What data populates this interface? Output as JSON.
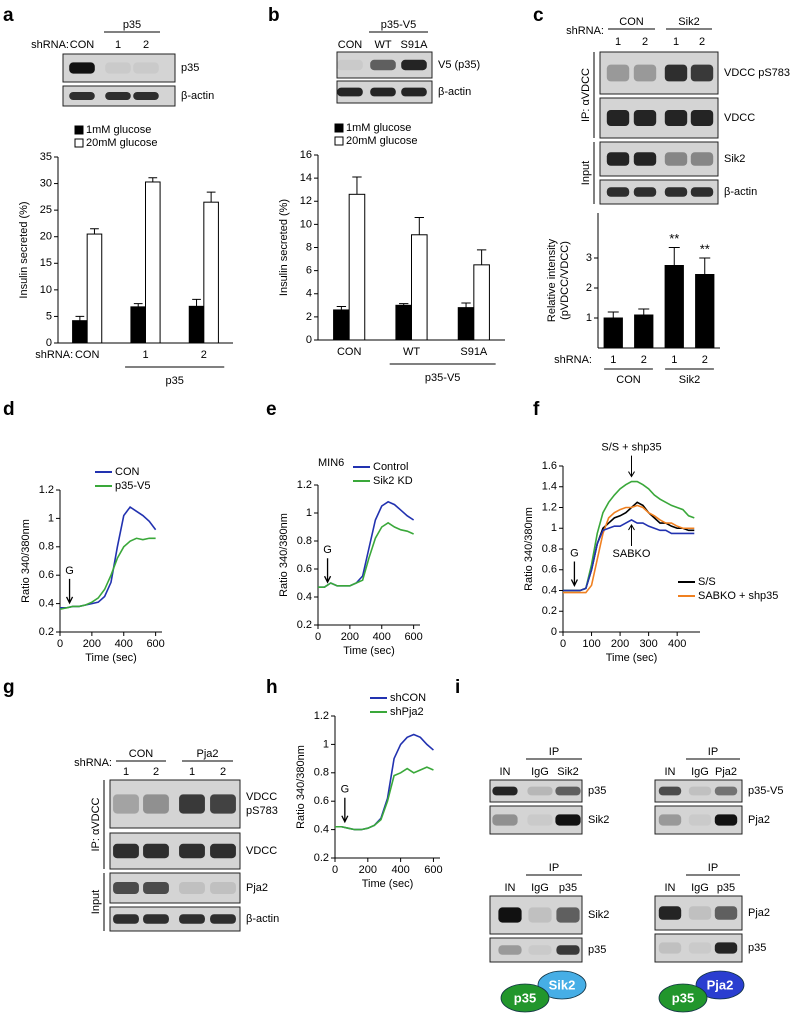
{
  "panel_labels": [
    "a",
    "b",
    "c",
    "d",
    "e",
    "f",
    "g",
    "h",
    "i"
  ],
  "blots": {
    "a": {
      "prefix": "shRNA:",
      "header": "p35",
      "lanes": [
        "CON",
        "1",
        "2"
      ],
      "rows": [
        "p35",
        "β-actin"
      ]
    },
    "b": {
      "header": "p35-V5",
      "lanes": [
        "CON",
        "WT",
        "S91A"
      ],
      "rows": [
        "V5 (p35)",
        "β-actin"
      ]
    },
    "c": {
      "prefix": "shRNA:",
      "groups": [
        "CON",
        "Sik2"
      ],
      "lanes": [
        "1",
        "2",
        "1",
        "2"
      ],
      "rows": [
        "VDCC pS783",
        "VDCC",
        "Sik2",
        "β-actin"
      ],
      "sections": [
        "IP: αVDCC",
        "Input"
      ]
    },
    "g": {
      "prefix": "shRNA:",
      "groups": [
        "CON",
        "Pja2"
      ],
      "lanes": [
        "1",
        "2",
        "1",
        "2"
      ],
      "rows": [
        [
          "VDCC",
          "pS783"
        ],
        "VDCC",
        "Pja2",
        "β-actin"
      ],
      "sections": [
        "IP: αVDCC",
        "Input"
      ]
    },
    "i": [
      {
        "header": "IP",
        "lanes": [
          "IN",
          "IgG",
          "Sik2"
        ],
        "rows": [
          "p35",
          "Sik2"
        ]
      },
      {
        "header": "IP",
        "lanes": [
          "IN",
          "IgG",
          "Pja2"
        ],
        "rows": [
          "p35-V5",
          "Pja2"
        ]
      },
      {
        "header": "IP",
        "lanes": [
          "IN",
          "IgG",
          "p35"
        ],
        "rows": [
          "Sik2",
          "p35"
        ]
      },
      {
        "header": "IP",
        "lanes": [
          "IN",
          "IgG",
          "p35"
        ],
        "rows": [
          "Pja2",
          "p35"
        ]
      }
    ],
    "complexes": [
      [
        "Sik2",
        "p35"
      ],
      [
        "Pja2",
        "p35"
      ]
    ]
  },
  "chart_data": [
    {
      "type": "bar",
      "ylabel": "Insulin secreted (%)",
      "categories": [
        "CON",
        "1",
        "2"
      ],
      "x_prefix": "shRNA:",
      "group_label": "p35",
      "ylim": [
        0,
        35
      ],
      "yticks": [
        0,
        5,
        10,
        15,
        20,
        25,
        30,
        35
      ],
      "legend": "top",
      "series": [
        {
          "name": "1mM glucose",
          "color": "#000000",
          "values": [
            4.2,
            6.8,
            6.9
          ],
          "errors": [
            0.8,
            0.6,
            1.3
          ]
        },
        {
          "name": "20mM glucose",
          "color": "#ffffff",
          "values": [
            20.5,
            30.3,
            26.5
          ],
          "errors": [
            1.0,
            0.8,
            1.9
          ]
        }
      ]
    },
    {
      "type": "bar",
      "ylabel": "Insulin secreted (%)",
      "categories": [
        "CON",
        "WT",
        "S91A"
      ],
      "group_label": "p35-V5",
      "ylim": [
        0,
        16
      ],
      "yticks": [
        0,
        2,
        4,
        6,
        8,
        10,
        12,
        14,
        16
      ],
      "legend": "top",
      "series": [
        {
          "name": "1mM glucose",
          "color": "#000000",
          "values": [
            2.6,
            3.0,
            2.8
          ],
          "errors": [
            0.3,
            0.15,
            0.4
          ]
        },
        {
          "name": "20mM glucose",
          "color": "#ffffff",
          "values": [
            12.6,
            9.1,
            6.5
          ],
          "errors": [
            1.5,
            1.5,
            1.3
          ]
        }
      ]
    },
    {
      "type": "bar",
      "ylabel": [
        "Relative intensity",
        "(pVDCC/VDCC)"
      ],
      "categories": [
        "1",
        "2",
        "1",
        "2"
      ],
      "x_prefix": "shRNA:",
      "groups": [
        "CON",
        "Sik2"
      ],
      "ylim": [
        0,
        4.5
      ],
      "yticks": [
        1,
        2,
        3
      ],
      "color": "#000000",
      "values": [
        1.0,
        1.1,
        2.75,
        2.45
      ],
      "errors": [
        0.2,
        0.2,
        0.6,
        0.55
      ],
      "significance": [
        null,
        null,
        "**",
        "**"
      ]
    },
    {
      "type": "line",
      "xlabel": "Time (sec)",
      "ylabel": "Ratio 340/380nm",
      "legend": "top",
      "x": [
        0,
        40,
        80,
        120,
        160,
        200,
        240,
        280,
        320,
        360,
        400,
        440,
        480,
        520,
        560,
        600
      ],
      "xlim": [
        0,
        640
      ],
      "xticks": [
        0,
        200,
        400,
        600
      ],
      "ylim": [
        0.2,
        1.2
      ],
      "yticks": [
        0.2,
        0.4,
        0.6,
        0.8,
        1,
        1.2
      ],
      "arrow": {
        "label": "G",
        "x": 60
      },
      "series": [
        {
          "name": "CON",
          "color": "#2232b0",
          "values": [
            0.37,
            0.37,
            0.38,
            0.38,
            0.39,
            0.4,
            0.41,
            0.45,
            0.55,
            0.8,
            1.02,
            1.08,
            1.05,
            1.02,
            0.98,
            0.92
          ]
        },
        {
          "name": "p35-V5",
          "color": "#3aa83a",
          "values": [
            0.36,
            0.37,
            0.38,
            0.38,
            0.39,
            0.41,
            0.44,
            0.5,
            0.6,
            0.72,
            0.8,
            0.84,
            0.86,
            0.85,
            0.86,
            0.86
          ]
        }
      ]
    },
    {
      "type": "line",
      "xlabel": "Time (sec)",
      "ylabel": "Ratio 340/380nm",
      "note": "MIN6",
      "legend": "top",
      "x": [
        0,
        40,
        80,
        120,
        160,
        200,
        240,
        280,
        320,
        360,
        400,
        440,
        480,
        520,
        560,
        600
      ],
      "xlim": [
        0,
        640
      ],
      "xticks": [
        0,
        200,
        400,
        600
      ],
      "ylim": [
        0.2,
        1.2
      ],
      "yticks": [
        0.2,
        0.4,
        0.6,
        0.8,
        1,
        1.2
      ],
      "arrow": {
        "label": "G",
        "x": 60
      },
      "series": [
        {
          "name": "Control",
          "color": "#2232b0",
          "values": [
            0.47,
            0.47,
            0.5,
            0.48,
            0.48,
            0.48,
            0.5,
            0.55,
            0.75,
            0.95,
            1.05,
            1.08,
            1.06,
            1.02,
            0.98,
            0.95
          ]
        },
        {
          "name": "Sik2 KD",
          "color": "#3aa83a",
          "values": [
            0.47,
            0.47,
            0.5,
            0.48,
            0.48,
            0.48,
            0.5,
            0.52,
            0.68,
            0.82,
            0.9,
            0.93,
            0.9,
            0.88,
            0.87,
            0.85
          ]
        }
      ]
    },
    {
      "type": "line",
      "xlabel": "Time (sec)",
      "ylabel": "Ratio 340/380nm",
      "legend": "right",
      "x": [
        0,
        20,
        40,
        60,
        80,
        100,
        120,
        140,
        160,
        180,
        200,
        220,
        240,
        260,
        280,
        300,
        320,
        340,
        360,
        380,
        400,
        420,
        440,
        460
      ],
      "xlim": [
        0,
        480
      ],
      "xticks": [
        0,
        100,
        200,
        300,
        400
      ],
      "ylim": [
        0,
        1.6
      ],
      "yticks": [
        0,
        0.2,
        0.4,
        0.6,
        0.8,
        1,
        1.2,
        1.4,
        1.6
      ],
      "arrow": {
        "label": "G",
        "x": 40
      },
      "series": [
        {
          "name": "S/S",
          "color": "#000000",
          "label_position": "legend",
          "values": [
            0.4,
            0.4,
            0.4,
            0.4,
            0.42,
            0.6,
            0.85,
            1.0,
            1.05,
            1.1,
            1.12,
            1.15,
            1.2,
            1.25,
            1.22,
            1.15,
            1.1,
            1.05,
            1.05,
            1.02,
            1.0,
            1.0,
            0.98,
            0.98
          ]
        },
        {
          "name": "SABKO + shp35",
          "color": "#f08020",
          "label_position": "legend",
          "values": [
            0.38,
            0.38,
            0.38,
            0.38,
            0.38,
            0.45,
            0.7,
            0.95,
            1.1,
            1.15,
            1.18,
            1.2,
            1.2,
            1.22,
            1.2,
            1.15,
            1.12,
            1.08,
            1.05,
            1.05,
            1.02,
            1.0,
            1.0,
            1.0
          ]
        },
        {
          "name": "S/S + shp35",
          "color": "#3aa83a",
          "label_position": "above",
          "values": [
            0.4,
            0.4,
            0.4,
            0.4,
            0.42,
            0.65,
            0.95,
            1.15,
            1.25,
            1.32,
            1.38,
            1.42,
            1.45,
            1.45,
            1.42,
            1.38,
            1.32,
            1.28,
            1.25,
            1.22,
            1.2,
            1.18,
            1.12,
            1.1
          ]
        },
        {
          "name": "SABKO",
          "color": "#2232b0",
          "label_position": "below",
          "values": [
            0.4,
            0.4,
            0.4,
            0.4,
            0.42,
            0.6,
            0.85,
            0.98,
            1.0,
            1.02,
            1.02,
            1.05,
            1.08,
            1.05,
            1.05,
            1.02,
            1.0,
            0.98,
            0.98,
            0.95,
            0.95,
            0.95,
            0.95,
            0.95
          ]
        }
      ]
    },
    {
      "type": "line",
      "xlabel": "Time (sec)",
      "ylabel": "Ratio 340/380nm",
      "legend": "top",
      "x": [
        0,
        40,
        80,
        120,
        160,
        200,
        240,
        280,
        320,
        360,
        400,
        440,
        480,
        520,
        560,
        600
      ],
      "xlim": [
        0,
        640
      ],
      "xticks": [
        0,
        200,
        400,
        600
      ],
      "ylim": [
        0.2,
        1.2
      ],
      "yticks": [
        0.2,
        0.4,
        0.6,
        0.8,
        1,
        1.2
      ],
      "arrow": {
        "label": "G",
        "x": 60
      },
      "series": [
        {
          "name": "shCON",
          "color": "#2232b0",
          "values": [
            0.42,
            0.42,
            0.41,
            0.4,
            0.4,
            0.41,
            0.43,
            0.48,
            0.62,
            0.9,
            1.0,
            1.05,
            1.07,
            1.05,
            1.0,
            0.96
          ]
        },
        {
          "name": "shPja2",
          "color": "#3aa83a",
          "values": [
            0.42,
            0.42,
            0.41,
            0.4,
            0.4,
            0.41,
            0.43,
            0.47,
            0.6,
            0.78,
            0.8,
            0.83,
            0.8,
            0.82,
            0.84,
            0.82
          ]
        }
      ]
    }
  ]
}
